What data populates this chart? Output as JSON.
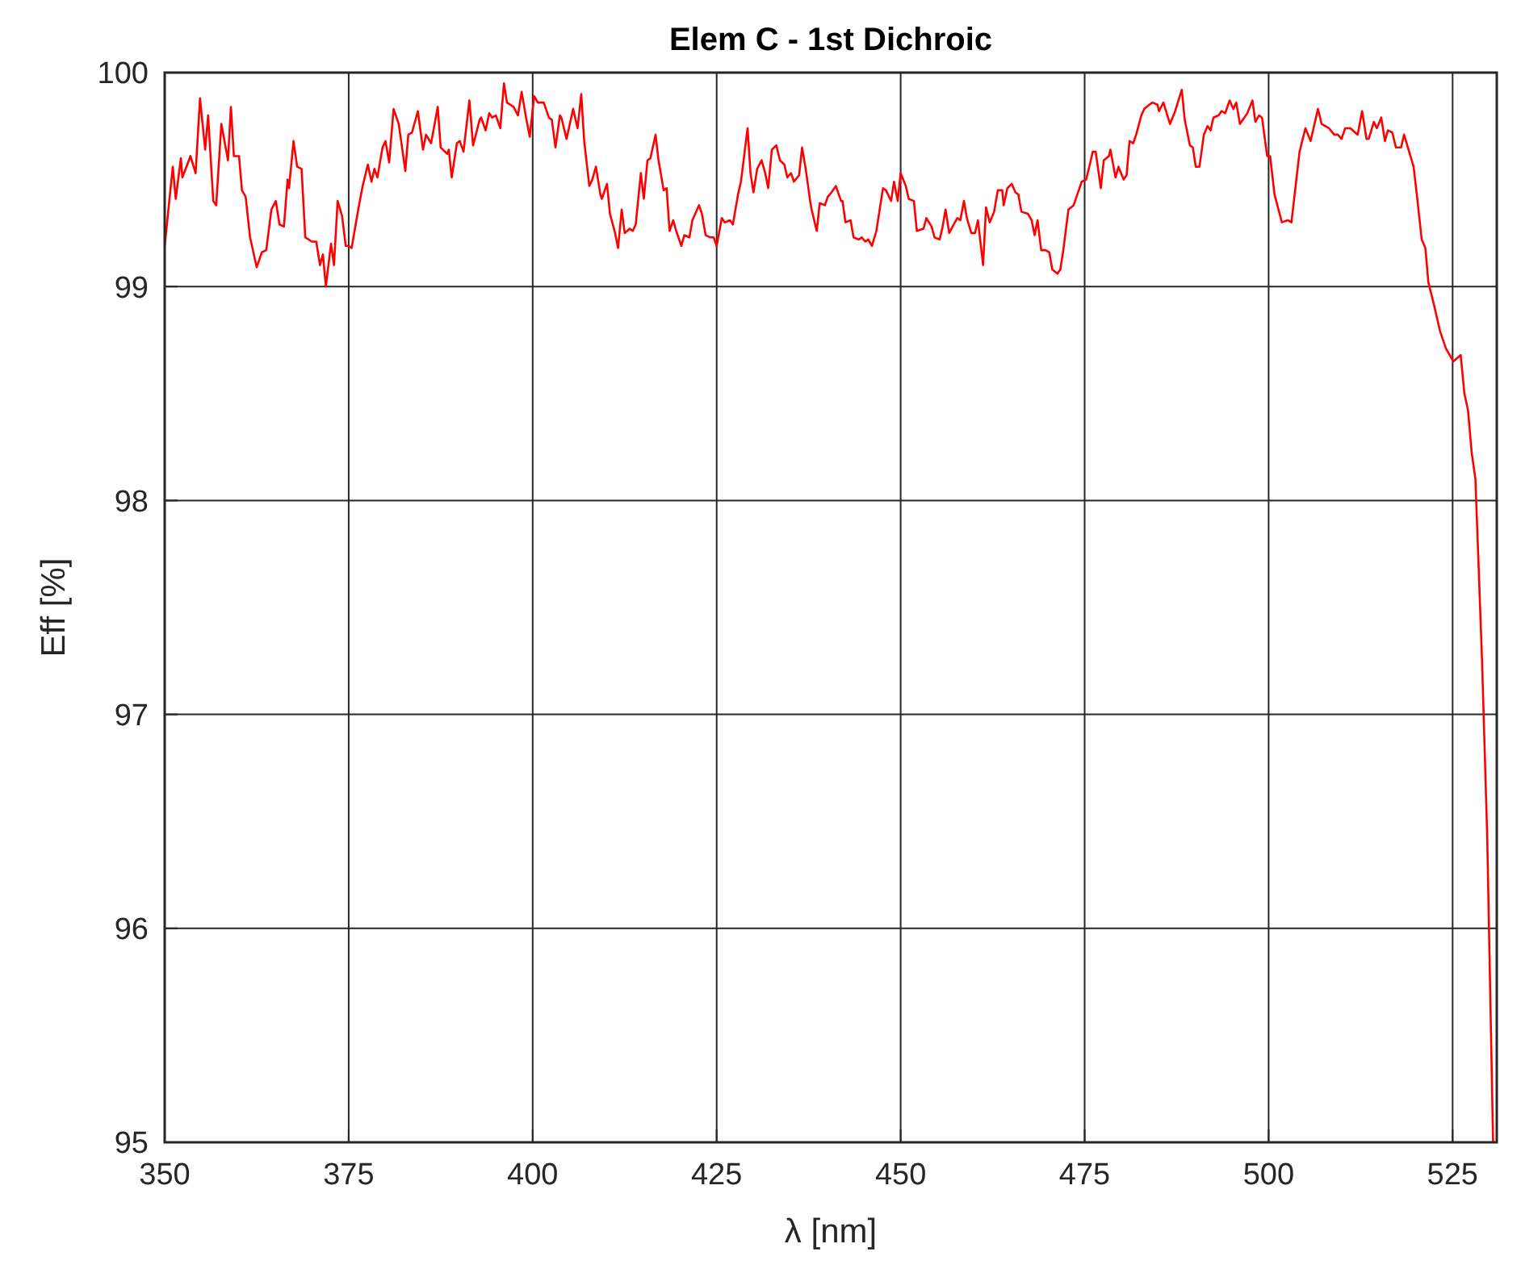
{
  "chart_data": {
    "type": "line",
    "title": "Elem C - 1st Dichroic",
    "xlabel": "λ [nm]",
    "ylabel": "Eff [%]",
    "xlim": [
      350,
      531
    ],
    "ylim": [
      95,
      100
    ],
    "xticks": [
      350,
      375,
      400,
      425,
      450,
      475,
      500,
      525
    ],
    "yticks": [
      95,
      96,
      97,
      98,
      99,
      100
    ],
    "grid": true,
    "marker": "none",
    "line_style": "solid",
    "series": [
      {
        "color": "#ff0000",
        "x": [
          350,
          351.1,
          351.5,
          352.2,
          352.4,
          353.5,
          354.2,
          354.8,
          355.5,
          355.9,
          356.6,
          357.0,
          357.7,
          358.6,
          359.0,
          359.4,
          360.1,
          360.5,
          361.0,
          361.6,
          362.5,
          363.2,
          363.8,
          364.5,
          365.1,
          365.6,
          366.2,
          366.7,
          366.9,
          367.5,
          368.0,
          368.6,
          369.1,
          370.0,
          370.6,
          371.1,
          371.5,
          371.9,
          372.6,
          373.0,
          373.5,
          374.1,
          374.6,
          375.0,
          375.4,
          376.3,
          376.9,
          377.6,
          378.1,
          378.5,
          378.9,
          379.6,
          380.0,
          380.5,
          381.1,
          381.8,
          382.7,
          383.1,
          383.6,
          384.4,
          385.1,
          385.5,
          386.2,
          387.1,
          387.5,
          388.4,
          388.6,
          389.0,
          389.7,
          390.1,
          390.6,
          391.4,
          391.9,
          392.8,
          393.0,
          393.6,
          394.1,
          394.5,
          395.0,
          395.6,
          396.1,
          396.5,
          397.4,
          398.0,
          398.5,
          399.1,
          399.6,
          400.2,
          400.7,
          401.5,
          402.2,
          402.6,
          403.1,
          403.7,
          403.9,
          404.6,
          405.5,
          406.1,
          406.6,
          407.0,
          407.7,
          408.1,
          408.6,
          409.2,
          409.4,
          410.1,
          410.5,
          411.2,
          411.6,
          412.1,
          412.5,
          413.2,
          413.6,
          414.0,
          414.7,
          415.1,
          415.6,
          416.0,
          416.7,
          417.1,
          417.8,
          418.2,
          418.6,
          419.1,
          419.5,
          420.2,
          420.6,
          421.3,
          421.7,
          422.6,
          423.0,
          423.5,
          424.1,
          424.6,
          425.0,
          425.7,
          426.1,
          426.8,
          427.2,
          427.9,
          428.3,
          429.2,
          429.6,
          430.0,
          430.5,
          431.1,
          431.6,
          432.0,
          432.5,
          433.1,
          433.6,
          434.2,
          434.6,
          435.1,
          435.5,
          436.2,
          436.6,
          437.1,
          437.7,
          437.9,
          438.6,
          439.0,
          439.7,
          440.1,
          440.6,
          441.2,
          441.9,
          442.1,
          442.5,
          443.2,
          443.6,
          444.3,
          444.7,
          445.2,
          445.6,
          446.1,
          446.7,
          447.6,
          448.0,
          448.7,
          449.1,
          449.6,
          450.0,
          450.7,
          451.1,
          451.8,
          452.2,
          453.1,
          453.5,
          454.2,
          454.6,
          455.3,
          455.7,
          456.1,
          456.6,
          457.2,
          457.7,
          458.1,
          458.6,
          459.0,
          459.6,
          460.1,
          460.5,
          461.2,
          461.6,
          462.1,
          462.7,
          463.2,
          463.8,
          464.0,
          464.5,
          465.1,
          465.6,
          466.0,
          466.4,
          467.3,
          467.8,
          468.2,
          468.6,
          469.1,
          469.7,
          470.2,
          470.6,
          471.3,
          471.7,
          472.1,
          472.8,
          473.5,
          473.9,
          474.6,
          475.2,
          475.7,
          476.1,
          476.5,
          477.2,
          477.6,
          478.3,
          478.5,
          479.2,
          479.6,
          480.3,
          480.7,
          481.1,
          481.6,
          482.0,
          482.7,
          483.1,
          483.8,
          484.2,
          484.9,
          485.1,
          485.7,
          486.6,
          487.3,
          488.2,
          488.6,
          489.3,
          489.7,
          490.1,
          490.6,
          491.2,
          491.7,
          492.1,
          492.5,
          493.2,
          493.6,
          494.1,
          494.7,
          495.2,
          495.6,
          496.1,
          496.7,
          497.1,
          497.8,
          498.2,
          498.7,
          499.1,
          499.8,
          500.2,
          500.8,
          501.8,
          502.6,
          503.1,
          504.2,
          505.0,
          505.7,
          506.7,
          507.2,
          508.2,
          508.9,
          509.4,
          509.9,
          510.4,
          511.1,
          512.1,
          512.7,
          513.3,
          513.6,
          514.3,
          514.7,
          515.3,
          515.8,
          516.2,
          516.8,
          517.3,
          518.0,
          518.4,
          519.7,
          520.2,
          520.8,
          521.3,
          521.7,
          522.5,
          523.3,
          524.1,
          525.1,
          526.1,
          526.6,
          527.1,
          527.6,
          528.1,
          529.0,
          529.7,
          530.5
        ],
        "values": [
          99.19,
          99.56,
          99.41,
          99.6,
          99.51,
          99.61,
          99.53,
          99.88,
          99.64,
          99.8,
          99.4,
          99.38,
          99.76,
          99.59,
          99.84,
          99.61,
          99.61,
          99.45,
          99.42,
          99.23,
          99.09,
          99.16,
          99.17,
          99.36,
          99.4,
          99.29,
          99.28,
          99.5,
          99.46,
          99.68,
          99.56,
          99.55,
          99.23,
          99.21,
          99.21,
          99.1,
          99.15,
          99.0,
          99.2,
          99.1,
          99.4,
          99.33,
          99.19,
          99.19,
          99.18,
          99.36,
          99.47,
          99.57,
          99.49,
          99.55,
          99.51,
          99.65,
          99.68,
          99.58,
          99.83,
          99.76,
          99.54,
          99.71,
          99.72,
          99.82,
          99.64,
          99.71,
          99.67,
          99.84,
          99.65,
          99.62,
          99.64,
          99.51,
          99.67,
          99.68,
          99.63,
          99.87,
          99.66,
          99.78,
          99.79,
          99.73,
          99.81,
          99.79,
          99.8,
          99.74,
          99.95,
          99.86,
          99.84,
          99.8,
          99.91,
          99.79,
          99.7,
          99.89,
          99.86,
          99.86,
          99.79,
          99.78,
          99.65,
          99.8,
          99.79,
          99.69,
          99.83,
          99.74,
          99.9,
          99.68,
          99.47,
          99.5,
          99.56,
          99.43,
          99.41,
          99.48,
          99.34,
          99.25,
          99.18,
          99.36,
          99.25,
          99.27,
          99.26,
          99.29,
          99.53,
          99.41,
          99.59,
          99.6,
          99.71,
          99.59,
          99.45,
          99.46,
          99.26,
          99.31,
          99.26,
          99.19,
          99.24,
          99.23,
          99.31,
          99.38,
          99.34,
          99.24,
          99.23,
          99.23,
          99.19,
          99.32,
          99.3,
          99.31,
          99.29,
          99.43,
          99.49,
          99.74,
          99.53,
          99.44,
          99.55,
          99.59,
          99.53,
          99.46,
          99.64,
          99.66,
          99.59,
          99.57,
          99.51,
          99.53,
          99.49,
          99.52,
          99.65,
          99.55,
          99.4,
          99.36,
          99.26,
          99.39,
          99.38,
          99.42,
          99.44,
          99.47,
          99.4,
          99.4,
          99.3,
          99.31,
          99.23,
          99.22,
          99.23,
          99.21,
          99.22,
          99.19,
          99.26,
          99.46,
          99.45,
          99.4,
          99.49,
          99.4,
          99.53,
          99.47,
          99.41,
          99.4,
          99.26,
          99.27,
          99.32,
          99.28,
          99.23,
          99.22,
          99.28,
          99.36,
          99.25,
          99.29,
          99.32,
          99.31,
          99.4,
          99.32,
          99.25,
          99.25,
          99.31,
          99.1,
          99.37,
          99.3,
          99.35,
          99.45,
          99.45,
          99.38,
          99.46,
          99.48,
          99.44,
          99.43,
          99.35,
          99.34,
          99.31,
          99.24,
          99.31,
          99.17,
          99.17,
          99.16,
          99.08,
          99.06,
          99.08,
          99.17,
          99.36,
          99.38,
          99.42,
          99.49,
          99.5,
          99.57,
          99.63,
          99.63,
          99.46,
          99.59,
          99.61,
          99.64,
          99.51,
          99.56,
          99.5,
          99.52,
          99.68,
          99.67,
          99.71,
          99.8,
          99.83,
          99.85,
          99.86,
          99.85,
          99.82,
          99.86,
          99.76,
          99.82,
          99.92,
          99.78,
          99.66,
          99.65,
          99.56,
          99.56,
          99.71,
          99.75,
          99.73,
          99.79,
          99.8,
          99.82,
          99.81,
          99.87,
          99.83,
          99.86,
          99.76,
          99.79,
          99.81,
          99.87,
          99.77,
          99.8,
          99.79,
          99.61,
          99.61,
          99.43,
          99.3,
          99.31,
          99.3,
          99.63,
          99.74,
          99.68,
          99.83,
          99.76,
          99.74,
          99.71,
          99.71,
          99.69,
          99.74,
          99.74,
          99.71,
          99.82,
          99.69,
          99.69,
          99.77,
          99.74,
          99.79,
          99.68,
          99.73,
          99.72,
          99.65,
          99.65,
          99.71,
          99.56,
          99.41,
          99.22,
          99.18,
          99.02,
          98.91,
          98.79,
          98.71,
          98.65,
          98.68,
          98.5,
          98.42,
          98.22,
          98.1,
          97.25,
          96.43,
          95.0
        ]
      }
    ]
  }
}
